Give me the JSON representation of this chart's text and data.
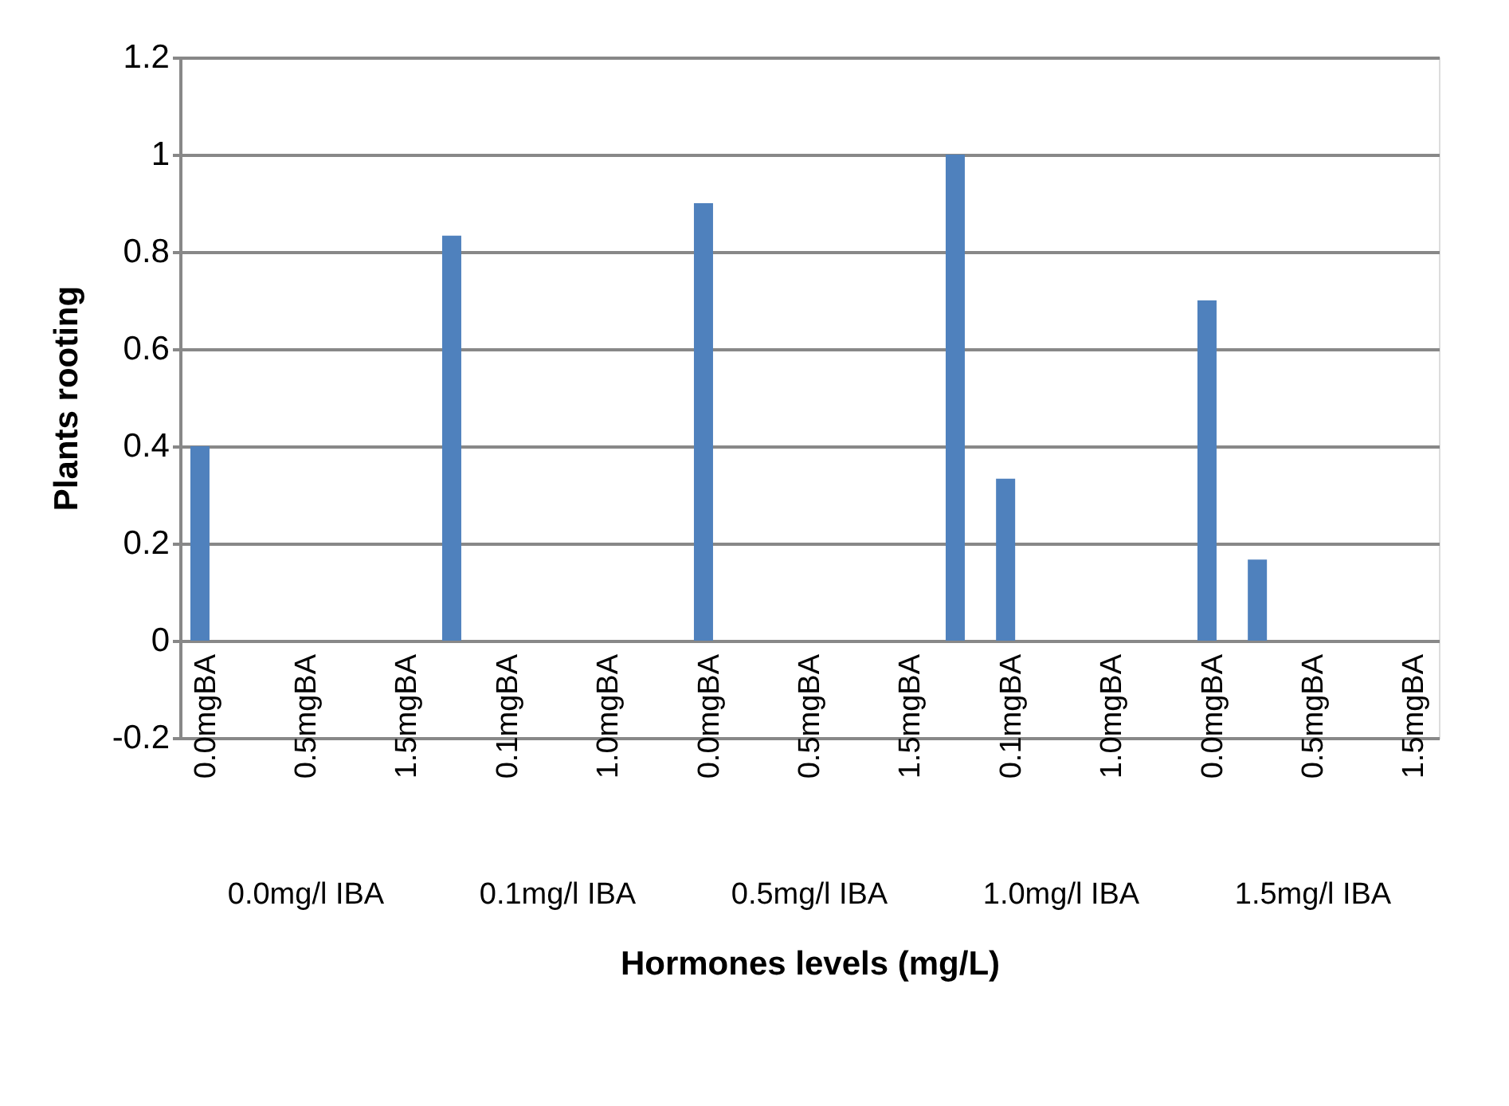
{
  "chart_data": {
    "type": "bar",
    "xlabel": "Hormones levels (mg/L)",
    "ylabel": "Plants rooting",
    "categories": [
      "0.0mgBA",
      null,
      "0.5mgBA",
      null,
      "1.5mgBA",
      null,
      "0.1mgBA",
      null,
      "1.0mgBA",
      null,
      "0.0mgBA",
      null,
      "0.5mgBA",
      null,
      "1.5mgBA",
      null,
      "0.1mgBA",
      null,
      "1.0mgBA",
      null,
      "0.0mgBA",
      null,
      "0.5mgBA",
      null,
      "1.5mgBA"
    ],
    "values": [
      0.4,
      0,
      0,
      0,
      0,
      0.833,
      0,
      0,
      0,
      0,
      0.9,
      0,
      0,
      0,
      0,
      1.0,
      0.333,
      0,
      0,
      0,
      0.7,
      0.167,
      0,
      0,
      0
    ],
    "color": "#4f81bd",
    "annotations": [
      "0.0mg/l IBA",
      "0.1mg/l IBA",
      "0.5mg/l IBA",
      "1.0mg/l IBA",
      "1.5mg/l IBA"
    ],
    "ylim": [
      -0.2,
      1.2
    ],
    "yticks": [
      -0.2,
      0,
      0.2,
      0.4,
      0.6,
      0.8,
      1,
      1.2
    ],
    "grid": "y"
  }
}
